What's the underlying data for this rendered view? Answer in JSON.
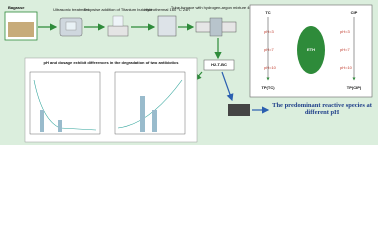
{
  "steps": [
    {
      "label": "Bagasse"
    },
    {
      "label": "Ultrasonic treatment"
    },
    {
      "label": "Dropwise addition of Titanium butoxide"
    },
    {
      "label": "Hydrothermal 160 °C 24h"
    },
    {
      "label": "Tube furnace with hydrogen-argon mixture 400 °C 2h"
    }
  ],
  "product": "H2-T-BC",
  "chart_panel": {
    "title": "pH and dosage exhibit differences in the degradation of two antibiotics"
  },
  "species_panel": {
    "left": {
      "title": "TC",
      "ph": [
        "pH=3",
        "pH=7",
        "pH=10"
      ],
      "product": "TP(TC)"
    },
    "right": {
      "title": "CIP",
      "ph": [
        "pH=3",
        "pH=7",
        "pH=10"
      ],
      "product": "TP(CIP)"
    },
    "center": "ETH"
  },
  "caption": "The predominant reactive species at different pH"
}
